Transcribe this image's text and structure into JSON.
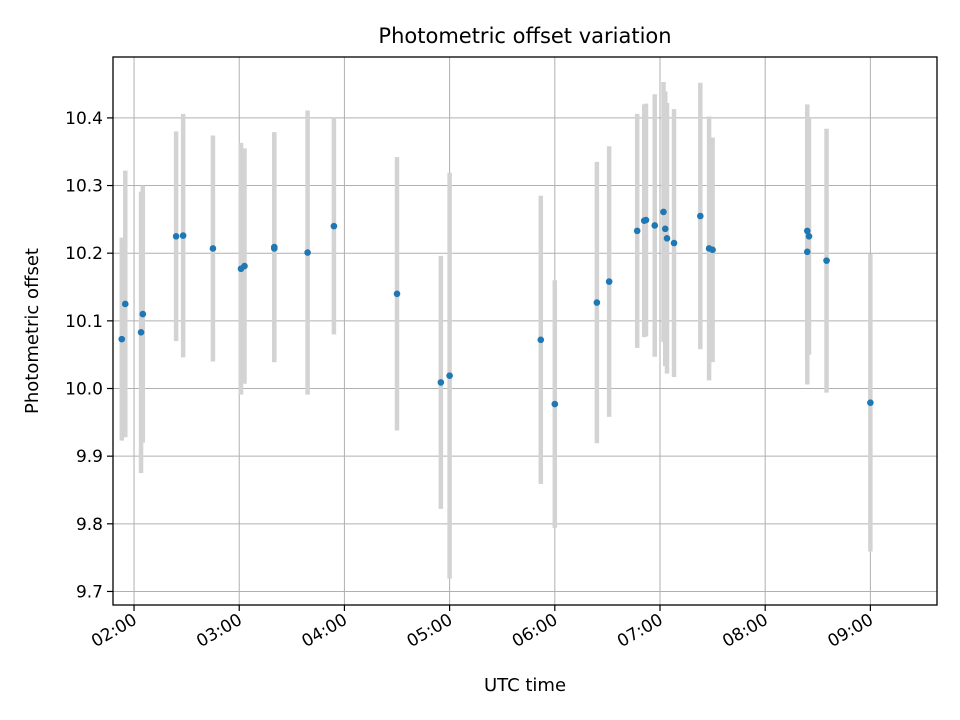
{
  "chart_data": {
    "type": "scatter",
    "title": "Photometric offset variation",
    "xlabel": "UTC time",
    "ylabel": "Photometric offset",
    "x_ticks": [
      "02:00",
      "03:00",
      "04:00",
      "05:00",
      "06:00",
      "07:00",
      "08:00",
      "09:00"
    ],
    "y_ticks": [
      "9.7",
      "9.8",
      "9.9",
      "10.0",
      "10.1",
      "10.2",
      "10.3",
      "10.4"
    ],
    "xlim": [
      "01:48",
      "09:38"
    ],
    "ylim": [
      9.68,
      10.49
    ],
    "grid": true,
    "colors": {
      "points": "#1f77b4",
      "errorbars": "#d3d3d3",
      "grid": "#b0b0b0"
    },
    "points": [
      {
        "x": "01:53",
        "y": 10.073,
        "err": 0.15
      },
      {
        "x": "01:55",
        "y": 10.125,
        "err": 0.197
      },
      {
        "x": "02:04",
        "y": 10.083,
        "err": 0.208
      },
      {
        "x": "02:05",
        "y": 10.11,
        "err": 0.19
      },
      {
        "x": "02:24",
        "y": 10.225,
        "err": 0.155
      },
      {
        "x": "02:28",
        "y": 10.226,
        "err": 0.18
      },
      {
        "x": "02:45",
        "y": 10.207,
        "err": 0.167
      },
      {
        "x": "03:01",
        "y": 10.177,
        "err": 0.186
      },
      {
        "x": "03:03",
        "y": 10.181,
        "err": 0.174
      },
      {
        "x": "03:20",
        "y": 10.209,
        "err": 0.17
      },
      {
        "x": "03:20",
        "y": 10.207,
        "err": 0.168
      },
      {
        "x": "03:39",
        "y": 10.201,
        "err": 0.21
      },
      {
        "x": "03:54",
        "y": 10.24,
        "err": 0.16
      },
      {
        "x": "04:30",
        "y": 10.14,
        "err": 0.202
      },
      {
        "x": "04:55",
        "y": 10.009,
        "err": 0.187
      },
      {
        "x": "05:00",
        "y": 10.019,
        "err": 0.3
      },
      {
        "x": "05:52",
        "y": 10.072,
        "err": 0.213
      },
      {
        "x": "06:00",
        "y": 9.977,
        "err": 0.183
      },
      {
        "x": "06:24",
        "y": 10.127,
        "err": 0.208
      },
      {
        "x": "06:31",
        "y": 10.158,
        "err": 0.2
      },
      {
        "x": "06:47",
        "y": 10.233,
        "err": 0.173
      },
      {
        "x": "06:51",
        "y": 10.248,
        "err": 0.172
      },
      {
        "x": "06:52",
        "y": 10.249,
        "err": 0.172
      },
      {
        "x": "06:57",
        "y": 10.241,
        "err": 0.194
      },
      {
        "x": "07:02",
        "y": 10.261,
        "err": 0.192
      },
      {
        "x": "07:03",
        "y": 10.236,
        "err": 0.203
      },
      {
        "x": "07:04",
        "y": 10.222,
        "err": 0.2
      },
      {
        "x": "07:08",
        "y": 10.215,
        "err": 0.198
      },
      {
        "x": "07:23",
        "y": 10.255,
        "err": 0.197
      },
      {
        "x": "07:28",
        "y": 10.207,
        "err": 0.195
      },
      {
        "x": "07:30",
        "y": 10.205,
        "err": 0.166
      },
      {
        "x": "08:24",
        "y": 10.233,
        "err": 0.187
      },
      {
        "x": "08:24",
        "y": 10.202,
        "err": 0.196
      },
      {
        "x": "08:25",
        "y": 10.225,
        "err": 0.175
      },
      {
        "x": "08:35",
        "y": 10.189,
        "err": 0.195
      },
      {
        "x": "09:00",
        "y": 9.979,
        "err": 0.22
      }
    ]
  }
}
